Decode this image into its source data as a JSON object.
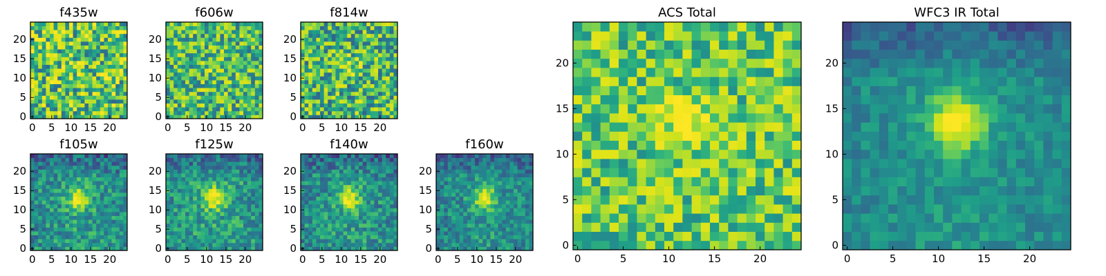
{
  "colormap": "viridis",
  "colors": {
    "low": "#440154",
    "mid": "#21918c",
    "high": "#fde725"
  },
  "chart_data": [
    {
      "type": "heatmap",
      "title": "f435w",
      "grid": [
        25,
        25
      ],
      "xlim": [
        0,
        24
      ],
      "ylim": [
        0,
        24
      ],
      "xticks": [
        "0",
        "5",
        "10",
        "15",
        "20"
      ],
      "yticks": [
        "0",
        "5",
        "10",
        "15",
        "20"
      ],
      "pattern": "noise",
      "source": {
        "x": 12.5,
        "y": 13.5
      },
      "peak_strength": 0.05,
      "noise": 0.35,
      "seed": 11,
      "level": 0.66,
      "has_values": false
    },
    {
      "type": "heatmap",
      "title": "f606w",
      "grid": [
        25,
        25
      ],
      "xlim": [
        0,
        24
      ],
      "ylim": [
        0,
        24
      ],
      "xticks": [
        "0",
        "5",
        "10",
        "15",
        "20"
      ],
      "yticks": [
        "0",
        "5",
        "10",
        "15",
        "20"
      ],
      "pattern": "noise",
      "source": {
        "x": 12.5,
        "y": 13.5
      },
      "peak_strength": 0.12,
      "noise": 0.3,
      "seed": 23,
      "level": 0.62,
      "has_values": false
    },
    {
      "type": "heatmap",
      "title": "f814w",
      "grid": [
        25,
        25
      ],
      "xlim": [
        0,
        24
      ],
      "ylim": [
        0,
        24
      ],
      "xticks": [
        "0",
        "5",
        "10",
        "15",
        "20"
      ],
      "yticks": [
        "0",
        "5",
        "10",
        "15",
        "20"
      ],
      "pattern": "noise",
      "source": {
        "x": 12.5,
        "y": 13.5
      },
      "peak_strength": 0.2,
      "noise": 0.32,
      "seed": 37,
      "level": 0.6,
      "has_values": false
    },
    {
      "type": "heatmap",
      "title": "f105w",
      "grid": [
        25,
        25
      ],
      "xlim": [
        0,
        24
      ],
      "ylim": [
        0,
        24
      ],
      "xticks": [
        "0",
        "5",
        "10",
        "15",
        "20"
      ],
      "yticks": [
        "0",
        "5",
        "10",
        "15",
        "20"
      ],
      "pattern": "source",
      "source": {
        "x": 12.5,
        "y": 13.5
      },
      "peak_strength": 0.45,
      "noise": 0.18,
      "seed": 41,
      "level": 0.5,
      "has_values": false
    },
    {
      "type": "heatmap",
      "title": "f125w",
      "grid": [
        25,
        25
      ],
      "xlim": [
        0,
        24
      ],
      "ylim": [
        0,
        24
      ],
      "xticks": [
        "0",
        "5",
        "10",
        "15",
        "20"
      ],
      "yticks": [
        "0",
        "5",
        "10",
        "15",
        "20"
      ],
      "pattern": "source",
      "source": {
        "x": 12.5,
        "y": 13.5
      },
      "peak_strength": 0.45,
      "noise": 0.18,
      "seed": 53,
      "level": 0.52,
      "has_values": false
    },
    {
      "type": "heatmap",
      "title": "f140w",
      "grid": [
        25,
        25
      ],
      "xlim": [
        0,
        24
      ],
      "ylim": [
        0,
        24
      ],
      "xticks": [
        "0",
        "5",
        "10",
        "15",
        "20"
      ],
      "yticks": [
        "0",
        "5",
        "10",
        "15",
        "20"
      ],
      "pattern": "source",
      "source": {
        "x": 12.5,
        "y": 13.5
      },
      "peak_strength": 0.45,
      "noise": 0.18,
      "seed": 67,
      "level": 0.5,
      "has_values": false
    },
    {
      "type": "heatmap",
      "title": "f160w",
      "grid": [
        25,
        25
      ],
      "xlim": [
        0,
        24
      ],
      "ylim": [
        0,
        24
      ],
      "xticks": [
        "0",
        "5",
        "10",
        "15",
        "20"
      ],
      "yticks": [
        "0",
        "5",
        "10",
        "15",
        "20"
      ],
      "pattern": "source",
      "source": {
        "x": 12.5,
        "y": 13.5
      },
      "peak_strength": 0.45,
      "noise": 0.16,
      "seed": 79,
      "level": 0.48,
      "has_values": false
    },
    {
      "type": "heatmap",
      "title": "ACS Total",
      "grid": [
        25,
        25
      ],
      "xlim": [
        0,
        24
      ],
      "ylim": [
        0,
        24
      ],
      "xticks": [
        "0",
        "5",
        "10",
        "15",
        "20"
      ],
      "yticks": [
        "0",
        "5",
        "10",
        "15",
        "20"
      ],
      "pattern": "noise",
      "source": {
        "x": 12.5,
        "y": 14
      },
      "peak_strength": 0.3,
      "noise": 0.25,
      "seed": 97,
      "level": 0.68,
      "has_values": false
    },
    {
      "type": "heatmap",
      "title": "WFC3 IR Total",
      "grid": [
        25,
        25
      ],
      "xlim": [
        0,
        24
      ],
      "ylim": [
        0,
        24
      ],
      "xticks": [
        "0",
        "5",
        "10",
        "15",
        "20"
      ],
      "yticks": [
        "0",
        "5",
        "10",
        "15",
        "20"
      ],
      "pattern": "source",
      "source": {
        "x": 12.5,
        "y": 14
      },
      "peak_strength": 0.55,
      "noise": 0.1,
      "seed": 113,
      "level": 0.48,
      "has_values": false
    }
  ]
}
